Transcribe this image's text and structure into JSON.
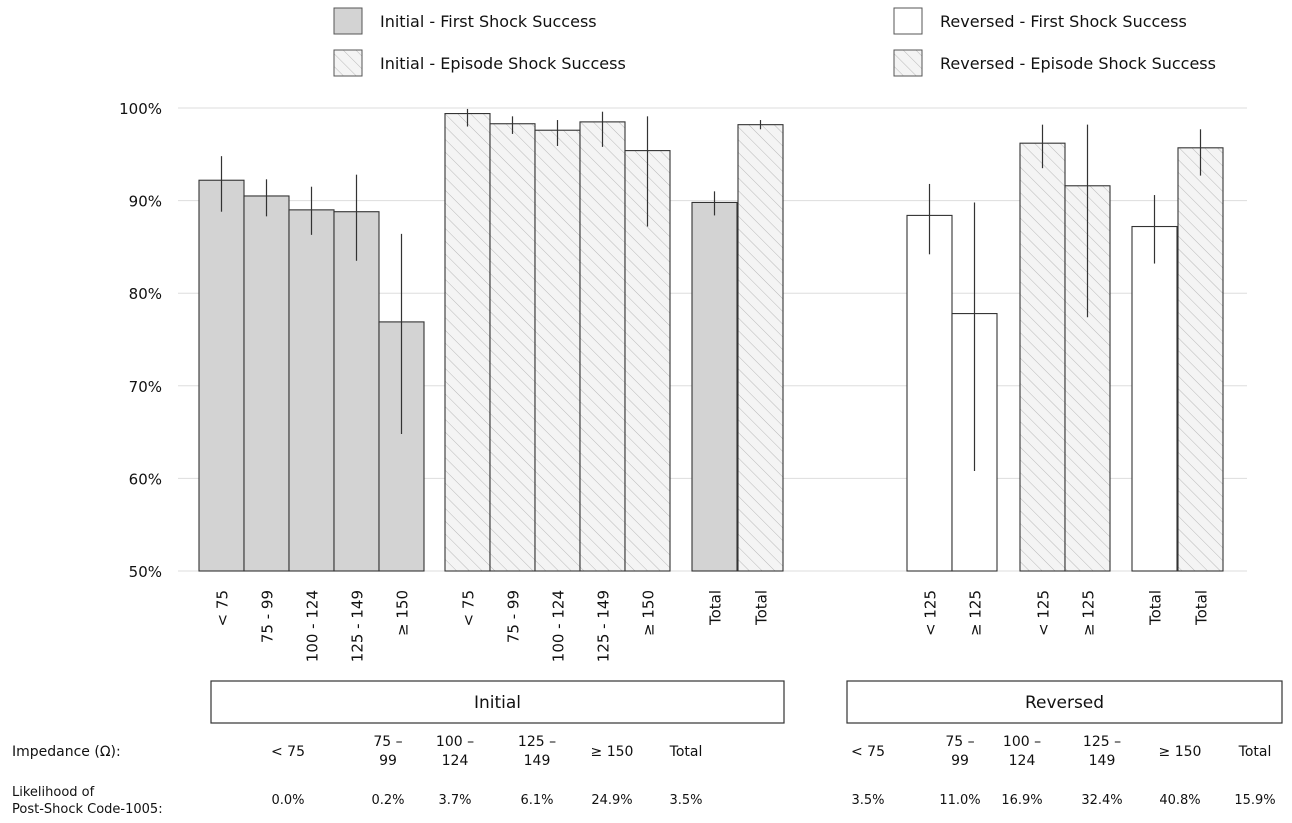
{
  "chart_data": {
    "type": "bar",
    "ylim": [
      50,
      100
    ],
    "yticks": [
      "50%",
      "60%",
      "70%",
      "80%",
      "90%",
      "100%"
    ],
    "ytick_values": [
      50,
      60,
      70,
      80,
      90,
      100
    ],
    "grid": true,
    "legend_position": "top",
    "legend": [
      {
        "label": "Initial - First Shock Success",
        "style": "gray"
      },
      {
        "label": "Initial - Episode Shock Success",
        "style": "hatch"
      },
      {
        "label": "Reversed - First Shock Success",
        "style": "white"
      },
      {
        "label": "Reversed - Episode Shock Success",
        "style": "hatch"
      }
    ],
    "colors": {
      "gray": "#d3d3d3",
      "white": "#ffffff",
      "hatch": "#f4f4f4",
      "grid": "#dddddd",
      "edge": "#333333"
    },
    "series": [
      {
        "name": "Initial - First Shock Success",
        "style": "gray",
        "categories": [
          "< 75",
          "75 - 99",
          "100 - 124",
          "125 - 149",
          "≥ 150",
          "Total"
        ],
        "values": [
          92.2,
          90.5,
          89.0,
          88.8,
          76.9,
          89.8
        ],
        "err_low": [
          88.8,
          88.3,
          86.3,
          83.5,
          64.8,
          88.4
        ],
        "err_high": [
          94.8,
          92.3,
          91.5,
          92.8,
          86.4,
          91.0
        ]
      },
      {
        "name": "Initial - Episode Shock Success",
        "style": "hatch",
        "categories": [
          "< 75",
          "75 - 99",
          "100 - 124",
          "125 - 149",
          "≥ 150",
          "Total"
        ],
        "values": [
          99.4,
          98.3,
          97.6,
          98.5,
          95.4,
          98.2
        ],
        "err_low": [
          98.0,
          97.2,
          95.9,
          95.8,
          87.2,
          97.7
        ],
        "err_high": [
          99.9,
          99.1,
          98.7,
          99.6,
          99.1,
          98.7
        ]
      },
      {
        "name": "Reversed - First Shock Success",
        "style": "white",
        "categories": [
          "< 125",
          "≥ 125",
          "Total"
        ],
        "values": [
          88.4,
          77.8,
          87.2
        ],
        "err_low": [
          84.2,
          60.8,
          83.2
        ],
        "err_high": [
          91.8,
          89.8,
          90.6
        ]
      },
      {
        "name": "Reversed - Episode Shock Success",
        "style": "hatch",
        "categories": [
          "< 125",
          "≥ 125",
          "Total"
        ],
        "values": [
          96.2,
          91.6,
          95.7
        ],
        "err_low": [
          93.5,
          77.4,
          92.7
        ],
        "err_high": [
          98.2,
          98.2,
          97.7
        ]
      }
    ],
    "groups": [
      "Initial",
      "Reversed"
    ],
    "table": {
      "row_labels": [
        "Impedance (Ω):",
        "Likelihood of",
        "Post-Shock Code-1005:"
      ],
      "initial_headers": [
        "< 75",
        "75 – 99",
        "100 – 124",
        "125 – 149",
        "≥ 150",
        "Total"
      ],
      "initial_values": [
        "0.0%",
        "0.2%",
        "3.7%",
        "6.1%",
        "24.9%",
        "3.5%"
      ],
      "reversed_headers": [
        "< 75",
        "75 – 99",
        "100 – 124",
        "125 – 149",
        "≥ 150",
        "Total"
      ],
      "reversed_values": [
        "3.5%",
        "11.0%",
        "16.9%",
        "32.4%",
        "40.8%",
        "15.9%"
      ]
    }
  }
}
